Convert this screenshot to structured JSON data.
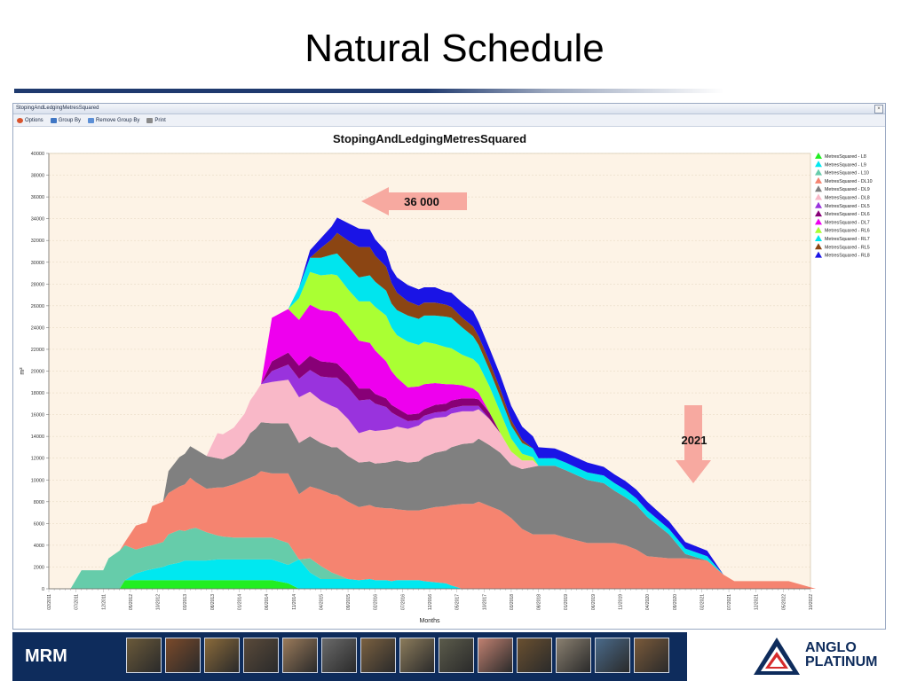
{
  "slide": {
    "title": "Natural Schedule"
  },
  "window": {
    "title": "StopingAndLedgingMetresSquared",
    "close_label": "×"
  },
  "toolbar": {
    "options": "Options",
    "group_by": "Group By",
    "remove_group_by": "Remove Group By",
    "print": "Print"
  },
  "footer": {
    "brand": "MRM",
    "logo_line1": "ANGLO",
    "logo_line2": "PLATINUM",
    "thumbnail_count": 14
  },
  "chart_data": {
    "type": "area",
    "stacked": true,
    "title": "StopingAndLedgingMetresSquared",
    "xlabel": "Months",
    "ylabel": "m²",
    "ylim": [
      0,
      40000
    ],
    "yticks": [
      0,
      2000,
      4000,
      6000,
      8000,
      10000,
      12000,
      14000,
      16000,
      18000,
      20000,
      22000,
      24000,
      26000,
      28000,
      30000,
      32000,
      34000,
      36000,
      38000,
      40000
    ],
    "xtick_labels": [
      "02/2011",
      "07/2011",
      "12/2011",
      "05/2012",
      "10/2012",
      "03/2013",
      "08/2013",
      "01/2014",
      "06/2014",
      "11/2014",
      "04/2015",
      "09/2015",
      "02/2016",
      "07/2016",
      "12/2016",
      "05/2017",
      "10/2017",
      "03/2018",
      "08/2018",
      "01/2019",
      "06/2019",
      "11/2019",
      "04/2020",
      "09/2020",
      "02/2021",
      "07/2021",
      "12/2021",
      "05/2022",
      "10/2022"
    ],
    "grid": true,
    "legend_position": "right",
    "x": [
      0,
      4,
      6,
      8,
      10,
      11,
      13,
      14,
      16,
      18,
      19,
      21,
      22,
      24,
      25,
      26,
      27,
      29,
      31,
      32,
      34,
      36,
      37,
      38,
      39,
      41,
      44,
      46,
      48,
      50,
      52,
      53,
      55,
      57,
      59,
      60,
      62,
      63,
      64,
      66,
      68,
      69,
      71,
      73,
      74,
      76,
      78,
      79,
      81,
      83,
      85,
      87,
      89,
      90,
      93,
      95,
      99,
      102,
      104,
      106,
      108,
      110,
      114,
      117,
      121,
      124,
      126,
      128,
      132,
      136,
      141
    ],
    "series": [
      {
        "name": "MetresSquared - L8",
        "color": "#22ee22",
        "values": [
          0,
          0,
          0,
          0,
          0,
          0,
          0,
          800,
          800,
          800,
          800,
          800,
          800,
          800,
          800,
          800,
          800,
          800,
          800,
          800,
          800,
          800,
          800,
          800,
          800,
          800,
          500,
          0,
          0,
          0,
          0,
          0,
          0,
          0,
          0,
          0,
          0,
          0,
          0,
          0,
          0,
          0,
          0,
          0,
          0,
          0,
          0,
          0,
          0,
          0,
          0,
          0,
          0,
          0,
          0,
          0,
          0,
          0,
          0,
          0,
          0,
          0,
          0,
          0,
          0,
          0,
          0,
          0,
          0,
          0,
          0
        ]
      },
      {
        "name": "MetresSquared - L9",
        "color": "#00e8f0",
        "values": [
          0,
          0,
          0,
          0,
          0,
          0,
          0,
          0,
          600,
          900,
          1000,
          1200,
          1400,
          1600,
          1800,
          1800,
          1800,
          1800,
          1900,
          1900,
          1900,
          1900,
          1900,
          1900,
          1900,
          1900,
          1700,
          2700,
          1500,
          900,
          900,
          900,
          900,
          800,
          900,
          800,
          800,
          700,
          800,
          800,
          800,
          700,
          600,
          500,
          300,
          0,
          0,
          0,
          0,
          0,
          0,
          0,
          0,
          0,
          0,
          0,
          0,
          0,
          0,
          0,
          0,
          0,
          0,
          0,
          0,
          0,
          0,
          0,
          0,
          0,
          0
        ]
      },
      {
        "name": "MetresSquared - L10",
        "color": "#66ccaa",
        "values": [
          0,
          0,
          1700,
          1700,
          1700,
          2800,
          3500,
          3200,
          2200,
          2200,
          2200,
          2300,
          2800,
          3000,
          2700,
          2900,
          3000,
          2600,
          2200,
          2100,
          2000,
          2000,
          2000,
          2000,
          2000,
          2000,
          2000,
          0,
          1300,
          1200,
          600,
          400,
          0,
          0,
          0,
          0,
          0,
          0,
          0,
          0,
          0,
          0,
          0,
          0,
          0,
          0,
          0,
          0,
          0,
          0,
          0,
          0,
          0,
          0,
          0,
          0,
          0,
          0,
          0,
          0,
          0,
          0,
          0,
          0,
          0,
          0,
          0,
          0,
          0,
          0,
          0
        ]
      },
      {
        "name": "MetresSquared - DL10",
        "color": "#f58470",
        "values": [
          0,
          0,
          0,
          0,
          0,
          0,
          0,
          300,
          2200,
          2200,
          3600,
          3700,
          3800,
          4000,
          4300,
          4700,
          4200,
          4000,
          4400,
          4500,
          4900,
          5300,
          5500,
          5700,
          6100,
          5900,
          6400,
          6000,
          6600,
          7000,
          7200,
          7300,
          7100,
          6700,
          6800,
          6700,
          6600,
          6700,
          6500,
          6400,
          6400,
          6600,
          6900,
          7100,
          7400,
          7800,
          7800,
          8000,
          7600,
          7200,
          6500,
          5500,
          5000,
          5000,
          5000,
          4700,
          4200,
          4200,
          4200,
          4000,
          3600,
          3000,
          2800,
          2800,
          2600,
          1300,
          700,
          700,
          700,
          700,
          0
        ]
      },
      {
        "name": "MetresSquared - DL9",
        "color": "#808080",
        "values": [
          0,
          0,
          0,
          0,
          0,
          0,
          0,
          0,
          0,
          0,
          0,
          0,
          2000,
          2700,
          2800,
          2900,
          3000,
          3000,
          2700,
          2600,
          2800,
          3400,
          4100,
          4300,
          4500,
          4600,
          4600,
          4700,
          4600,
          4300,
          4300,
          4400,
          4200,
          4100,
          4000,
          4000,
          4200,
          4300,
          4500,
          4400,
          4500,
          4800,
          5000,
          5100,
          5300,
          5500,
          5600,
          5800,
          5600,
          5300,
          4900,
          5500,
          6200,
          6300,
          6300,
          6200,
          5800,
          5500,
          4800,
          4400,
          4100,
          3600,
          2200,
          400,
          0,
          0,
          0,
          0,
          0,
          0,
          0
        ]
      },
      {
        "name": "MetresSquared - DL8",
        "color": "#f9b8c8",
        "values": [
          0,
          0,
          0,
          0,
          0,
          0,
          0,
          0,
          0,
          0,
          0,
          0,
          0,
          0,
          0,
          0,
          0,
          0,
          2300,
          2300,
          2400,
          2700,
          3000,
          3300,
          3500,
          3800,
          4000,
          4200,
          4100,
          3900,
          3800,
          3600,
          3400,
          2700,
          2900,
          3000,
          3000,
          3000,
          3100,
          3100,
          3300,
          3300,
          3200,
          3100,
          3100,
          3000,
          2900,
          2700,
          2400,
          1800,
          1200,
          800,
          600,
          0,
          0,
          0,
          0,
          0,
          0,
          0,
          0,
          0,
          0,
          0,
          0,
          0,
          0,
          0,
          0,
          0,
          0
        ]
      },
      {
        "name": "MetresSquared - DL5",
        "color": "#9933dd",
        "values": [
          0,
          0,
          0,
          0,
          0,
          0,
          0,
          0,
          0,
          0,
          0,
          0,
          0,
          0,
          0,
          0,
          0,
          0,
          0,
          0,
          0,
          0,
          0,
          0,
          0,
          1000,
          1400,
          1700,
          2000,
          2200,
          2600,
          2800,
          2900,
          3000,
          2800,
          2500,
          2100,
          1500,
          1000,
          700,
          500,
          500,
          500,
          500,
          500,
          500,
          500,
          300,
          0,
          0,
          0,
          0,
          0,
          0,
          0,
          0,
          0,
          0,
          0,
          0,
          0,
          0,
          0,
          0,
          0,
          0,
          0,
          0,
          0,
          0,
          0
        ]
      },
      {
        "name": "MetresSquared - DL6",
        "color": "#880077",
        "values": [
          0,
          0,
          0,
          0,
          0,
          0,
          0,
          0,
          0,
          0,
          0,
          0,
          0,
          0,
          0,
          0,
          0,
          0,
          0,
          0,
          0,
          0,
          0,
          0,
          0,
          900,
          1100,
          1200,
          1300,
          1400,
          1400,
          1300,
          1200,
          1100,
          1000,
          900,
          800,
          700,
          700,
          600,
          600,
          600,
          700,
          700,
          700,
          700,
          700,
          600,
          600,
          0,
          0,
          0,
          0,
          0,
          0,
          0,
          0,
          0,
          0,
          0,
          0,
          0,
          0,
          0,
          0,
          0,
          0,
          0,
          0,
          0,
          0
        ]
      },
      {
        "name": "MetresSquared - DL7",
        "color": "#ee00ee",
        "values": [
          0,
          0,
          0,
          0,
          0,
          0,
          0,
          0,
          0,
          0,
          0,
          0,
          0,
          0,
          0,
          0,
          0,
          0,
          0,
          0,
          0,
          0,
          0,
          0,
          0,
          4000,
          4000,
          4200,
          4700,
          4700,
          4700,
          4600,
          4400,
          4400,
          4200,
          4000,
          3400,
          3100,
          2800,
          2500,
          2500,
          2300,
          2000,
          1800,
          1500,
          1200,
          900,
          600,
          0,
          0,
          0,
          0,
          0,
          0,
          0,
          0,
          0,
          0,
          0,
          0,
          0,
          0,
          0,
          0,
          0,
          0,
          0,
          0,
          0,
          0,
          0
        ]
      },
      {
        "name": "MetresSquared - RL6",
        "color": "#aaff33",
        "values": [
          0,
          0,
          0,
          0,
          0,
          0,
          0,
          0,
          0,
          0,
          0,
          0,
          0,
          0,
          0,
          0,
          0,
          0,
          0,
          0,
          0,
          0,
          0,
          0,
          0,
          0,
          0,
          2000,
          3000,
          3200,
          3400,
          3500,
          3400,
          3600,
          3800,
          4000,
          4200,
          4000,
          3900,
          4200,
          3800,
          3900,
          3600,
          3400,
          3300,
          2800,
          2700,
          2600,
          2400,
          1900,
          1200,
          600,
          300,
          0,
          0,
          0,
          0,
          0,
          0,
          0,
          0,
          0,
          0,
          0,
          0,
          0,
          0,
          0,
          0,
          0,
          0
        ]
      },
      {
        "name": "MetresSquared - RL7",
        "color": "#00e5ee",
        "values": [
          0,
          0,
          0,
          0,
          0,
          0,
          0,
          0,
          0,
          0,
          0,
          0,
          0,
          0,
          0,
          0,
          0,
          0,
          0,
          0,
          0,
          0,
          0,
          0,
          0,
          0,
          0,
          1000,
          1300,
          1600,
          1800,
          2000,
          2200,
          2200,
          2400,
          2300,
          2300,
          2200,
          2300,
          2400,
          2400,
          2400,
          2600,
          2800,
          2800,
          2500,
          2100,
          1800,
          1500,
          1400,
          1200,
          1000,
          800,
          700,
          700,
          700,
          700,
          700,
          700,
          700,
          600,
          600,
          500,
          500,
          400,
          0,
          0,
          0,
          0,
          0,
          0
        ]
      },
      {
        "name": "MetresSquared - RL5",
        "color": "#8b4513",
        "values": [
          0,
          0,
          0,
          0,
          0,
          0,
          0,
          0,
          0,
          0,
          0,
          0,
          0,
          0,
          0,
          0,
          0,
          0,
          0,
          0,
          0,
          0,
          0,
          0,
          0,
          0,
          0,
          0,
          0,
          900,
          1400,
          1900,
          2300,
          2800,
          2600,
          2400,
          2200,
          1900,
          1600,
          1300,
          1200,
          1200,
          1200,
          1100,
          1000,
          900,
          900,
          800,
          800,
          700,
          500,
          300,
          0,
          0,
          0,
          0,
          0,
          0,
          0,
          0,
          0,
          0,
          0,
          0,
          0,
          0,
          0,
          0,
          0,
          0,
          0
        ]
      },
      {
        "name": "MetresSquared - RL8",
        "color": "#1a14e6",
        "values": [
          0,
          0,
          0,
          0,
          0,
          0,
          0,
          0,
          0,
          0,
          0,
          0,
          0,
          0,
          0,
          0,
          0,
          0,
          0,
          0,
          0,
          0,
          0,
          0,
          0,
          0,
          0,
          0,
          700,
          900,
          1200,
          1400,
          1600,
          1700,
          1600,
          1500,
          1400,
          1300,
          1400,
          1500,
          1500,
          1400,
          1400,
          1200,
          1300,
          1400,
          1400,
          1300,
          1200,
          1300,
          1300,
          1200,
          1100,
          1000,
          900,
          900,
          900,
          800,
          800,
          800,
          800,
          800,
          700,
          600,
          500,
          0,
          0,
          0,
          0,
          0,
          0
        ]
      }
    ],
    "annotations": [
      {
        "text": "36 000",
        "arrow": "left",
        "color": "#f7a9a0"
      },
      {
        "text": "2021",
        "arrow": "down",
        "color": "#f7a9a0"
      }
    ]
  }
}
